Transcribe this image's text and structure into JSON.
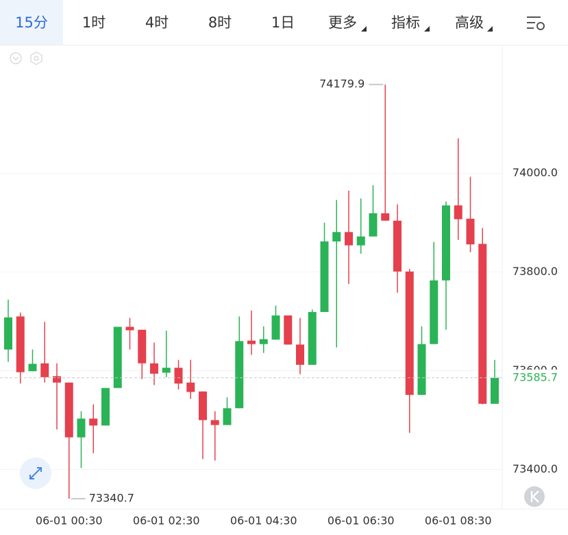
{
  "toolbar": {
    "tabs": [
      "15分",
      "1时",
      "4时",
      "8时",
      "1日",
      "更多",
      "指标",
      "高级"
    ]
  },
  "chart_data": {
    "type": "candlestick",
    "categories": [
      null,
      null,
      null,
      null,
      null,
      "06-01 00:30",
      null,
      null,
      null,
      null,
      null,
      null,
      null,
      "06-01 02:30",
      null,
      null,
      null,
      null,
      null,
      null,
      null,
      "06-01 04:30",
      null,
      null,
      null,
      null,
      null,
      null,
      null,
      "06-01 06:30",
      null,
      null,
      null,
      null,
      null,
      null,
      null,
      "06-01 08:30",
      null,
      null,
      null
    ],
    "series": [
      {
        "up_color": "#2bb357",
        "down_color": "#e5404d",
        "open": [
          73643,
          73710,
          73599,
          73615,
          73589,
          73576,
          73465,
          73503,
          73489,
          73565,
          73689,
          73683,
          73615,
          73596,
          73606,
          73576,
          73558,
          73500,
          73490,
          73524,
          73661,
          73654,
          73663,
          73712,
          73653,
          73612,
          73719,
          73862,
          73881,
          73854,
          73872,
          73919,
          73904,
          73801,
          73551,
          73654,
          73783,
          73935,
          73908,
          73857,
          73533
        ],
        "high": [
          73744,
          73718,
          73643,
          73699,
          73615,
          73576,
          73518,
          73532,
          73565,
          73689,
          73707,
          73683,
          73657,
          73681,
          73622,
          73622,
          73558,
          73518,
          73546,
          73710,
          73722,
          73690,
          73732,
          73712,
          73707,
          73724,
          73900,
          73946,
          73965,
          73949,
          73976,
          74179.9,
          73937,
          73806,
          73690,
          73861,
          73943,
          74071,
          73993,
          73889,
          73622
        ],
        "low": [
          73618,
          73574,
          73599,
          73576,
          73481,
          73340.7,
          73403,
          73433,
          73489,
          73565,
          73643,
          73583,
          73571,
          73587,
          73562,
          73543,
          73421,
          73418,
          73490,
          73524,
          73632,
          73636,
          73663,
          73653,
          73593,
          73612,
          73719,
          73647,
          73776,
          73837,
          73872,
          73904,
          73758,
          73474,
          73551,
          73654,
          73683,
          73865,
          73840,
          73532,
          73533
        ],
        "close": [
          73708,
          73597,
          73614,
          73587,
          73576,
          73465,
          73503,
          73489,
          73565,
          73689,
          73682,
          73615,
          73594,
          73606,
          73574,
          73557,
          73500,
          73490,
          73524,
          73660,
          73654,
          73664,
          73712,
          73653,
          73612,
          73719,
          73862,
          73881,
          73854,
          73872,
          73919,
          73904,
          73801,
          73551,
          73654,
          73783,
          73935,
          73907,
          73856,
          73533,
          73585.7
        ]
      }
    ],
    "ylim": [
      73320,
      74258
    ],
    "yticks": [
      {
        "value": 73400,
        "label": "73400.0"
      },
      {
        "value": 73600,
        "label": "73600.0"
      },
      {
        "value": 73800,
        "label": "73800.0"
      },
      {
        "value": 74000,
        "label": "74000.0"
      }
    ],
    "grid": true
  }
}
